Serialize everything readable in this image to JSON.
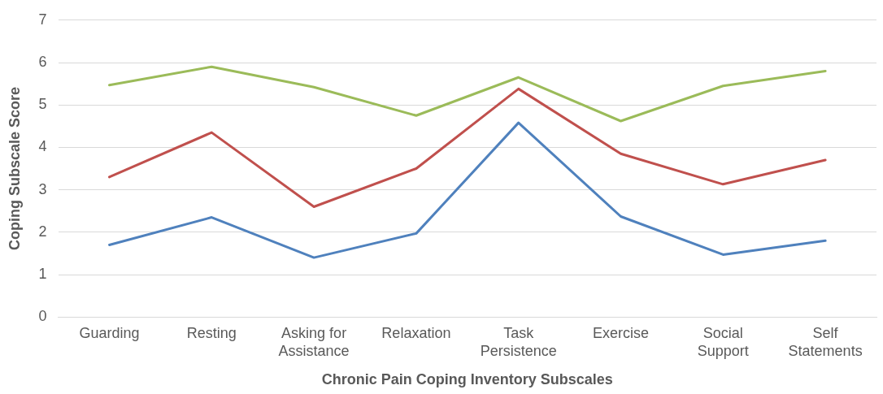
{
  "chart_data": {
    "type": "line",
    "xlabel": "Chronic Pain Coping Inventory Subscales",
    "ylabel": "Coping Subscale Score",
    "categories": [
      "Guarding",
      "Resting",
      "Asking for Assistance",
      "Relaxation",
      "Task Persistence",
      "Exercise",
      "Social Support",
      "Self Statements"
    ],
    "series": [
      {
        "color": "#9bbb59",
        "values": [
          5.47,
          5.9,
          5.42,
          4.75,
          5.65,
          4.62,
          5.45,
          5.8
        ]
      },
      {
        "color": "#c0504d",
        "values": [
          3.3,
          4.35,
          2.6,
          3.5,
          5.38,
          3.85,
          3.13,
          3.7
        ]
      },
      {
        "color": "#4f81bd",
        "values": [
          1.7,
          2.35,
          1.4,
          1.97,
          4.58,
          2.37,
          1.47,
          1.8
        ]
      }
    ],
    "ylim": [
      0,
      7
    ],
    "yticks": [
      0,
      1,
      2,
      3,
      4,
      5,
      6,
      7
    ],
    "grid": "y",
    "legend": false,
    "marker": "none",
    "line_style": "solid"
  }
}
